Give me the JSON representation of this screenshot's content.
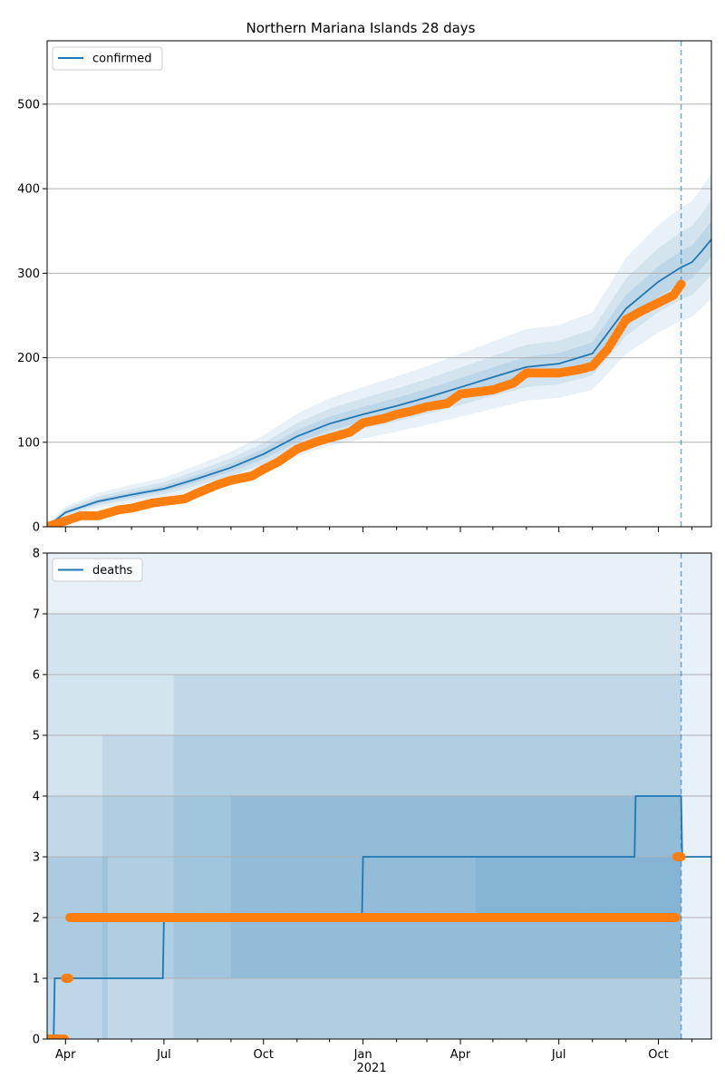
{
  "chart_data": [
    {
      "type": "line",
      "title": "Northern Mariana Islands 28 days",
      "legend": [
        "confirmed"
      ],
      "legend_position": "top-left",
      "grid": "horizontal",
      "ylim": [
        0,
        575
      ],
      "y_ticks": [
        0,
        100,
        200,
        300,
        400,
        500
      ],
      "x_range": [
        "2020-03-15",
        "2021-11-19"
      ],
      "forecast_start": "2021-10-22",
      "colors": {
        "line": "#1f77b4",
        "band": "#1f77b4",
        "points": "#ff7f0e",
        "grid": "#b0b0b0"
      },
      "series": [
        {
          "name": "confirmed",
          "role": "model",
          "x": [
            "2020-03-15",
            "2020-04-01",
            "2020-05-01",
            "2020-06-01",
            "2020-07-01",
            "2020-08-01",
            "2020-09-01",
            "2020-10-01",
            "2020-11-01",
            "2020-12-01",
            "2021-01-01",
            "2021-02-01",
            "2021-03-01",
            "2021-04-01",
            "2021-05-01",
            "2021-06-01",
            "2021-07-01",
            "2021-08-01",
            "2021-09-01",
            "2021-10-01",
            "2021-10-22"
          ],
          "y": [
            0,
            17,
            30,
            38,
            45,
            57,
            70,
            86,
            107,
            122,
            133,
            143,
            153,
            165,
            177,
            189,
            193,
            205,
            258,
            290,
            307
          ]
        },
        {
          "name": "",
          "role": "forecast",
          "x": [
            "2021-10-22",
            "2021-11-01",
            "2021-11-10",
            "2021-11-19"
          ],
          "y": [
            307,
            313,
            326,
            340
          ]
        },
        {
          "name": "",
          "role": "observed",
          "x": [
            "2020-03-15",
            "2020-04-01",
            "2020-04-15",
            "2020-05-01",
            "2020-05-20",
            "2020-06-01",
            "2020-06-20",
            "2020-07-01",
            "2020-07-20",
            "2020-08-01",
            "2020-08-20",
            "2020-09-01",
            "2020-09-20",
            "2020-10-01",
            "2020-10-15",
            "2020-11-01",
            "2020-11-20",
            "2020-12-01",
            "2020-12-20",
            "2021-01-01",
            "2021-01-20",
            "2021-02-01",
            "2021-02-15",
            "2021-03-01",
            "2021-03-20",
            "2021-04-01",
            "2021-04-20",
            "2021-05-01",
            "2021-05-20",
            "2021-06-01",
            "2021-06-20",
            "2021-07-01",
            "2021-07-20",
            "2021-08-01",
            "2021-08-15",
            "2021-09-01",
            "2021-09-15",
            "2021-10-01",
            "2021-10-15",
            "2021-10-22"
          ],
          "y": [
            0,
            7,
            13,
            13,
            20,
            22,
            28,
            30,
            33,
            40,
            50,
            55,
            60,
            68,
            77,
            92,
            101,
            105,
            112,
            123,
            128,
            133,
            137,
            142,
            146,
            157,
            160,
            162,
            170,
            182,
            182,
            182,
            186,
            190,
            210,
            245,
            255,
            265,
            274,
            287
          ]
        }
      ]
    },
    {
      "type": "line",
      "legend": [
        "deaths"
      ],
      "legend_position": "top-left",
      "grid": "horizontal",
      "ylim": [
        0,
        8
      ],
      "y_ticks": [
        0,
        1,
        2,
        3,
        4,
        5,
        6,
        7,
        8
      ],
      "x_range": [
        "2020-03-15",
        "2021-11-19"
      ],
      "x_ticks": [
        "Apr",
        "Jul",
        "Oct",
        "Jan",
        "Apr",
        "Jul",
        "Oct"
      ],
      "x_year_label": "2021",
      "forecast_start": "2021-10-22",
      "series": [
        {
          "name": "deaths",
          "role": "model",
          "x": [
            "2020-03-15",
            "2020-03-21",
            "2020-03-22",
            "2020-06-30",
            "2020-07-01",
            "2020-12-31",
            "2021-01-01",
            "2021-09-09",
            "2021-09-10",
            "2021-10-22",
            "2021-10-23",
            "2021-11-19"
          ],
          "y": [
            0,
            0,
            1,
            1,
            2,
            2,
            3,
            3,
            4,
            4,
            3,
            3
          ]
        },
        {
          "name": "",
          "role": "observed",
          "x": [
            "2020-03-15",
            "2020-03-31",
            "2020-04-01",
            "2020-04-04",
            "2020-04-05",
            "2021-10-17",
            "2021-10-18",
            "2021-10-22"
          ],
          "y": [
            0,
            0,
            1,
            1,
            2,
            2,
            3,
            3
          ]
        }
      ]
    }
  ]
}
